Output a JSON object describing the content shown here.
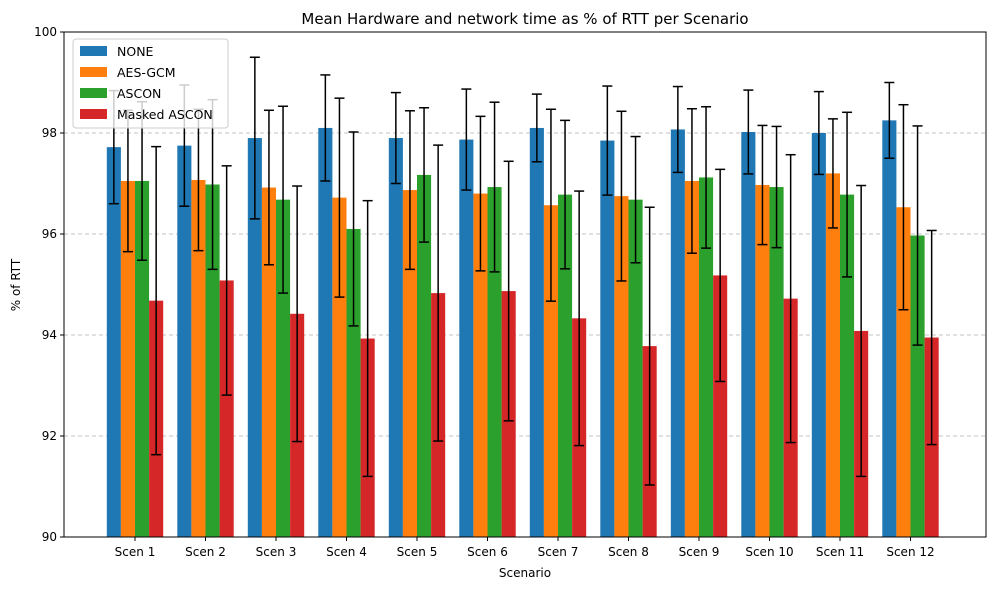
{
  "chart_data": {
    "type": "bar",
    "title": "Mean Hardware and network time as % of RTT per Scenario",
    "xlabel": "Scenario",
    "ylabel": "% of RTT",
    "ylim": [
      90,
      100
    ],
    "yticks": [
      90,
      92,
      94,
      96,
      98,
      100
    ],
    "grid": "horizontal dashed",
    "legend_position": "top-left",
    "categories": [
      "Scen 1",
      "Scen 2",
      "Scen 3",
      "Scen 4",
      "Scen 5",
      "Scen 6",
      "Scen 7",
      "Scen 8",
      "Scen 9",
      "Scen 10",
      "Scen 11",
      "Scen 12"
    ],
    "series": [
      {
        "name": "NONE",
        "color": "#1f77b4",
        "values": [
          97.72,
          97.75,
          97.9,
          98.1,
          97.9,
          97.87,
          98.1,
          97.85,
          98.07,
          98.02,
          98.0,
          98.25
        ],
        "error": [
          1.12,
          1.2,
          1.6,
          1.05,
          0.9,
          1.0,
          0.67,
          1.08,
          0.85,
          0.83,
          0.82,
          0.75
        ]
      },
      {
        "name": "AES-GCM",
        "color": "#ff7f0e",
        "values": [
          97.05,
          97.07,
          96.92,
          96.72,
          96.87,
          96.8,
          96.57,
          96.75,
          97.05,
          96.97,
          97.2,
          96.53
        ],
        "error": [
          1.4,
          1.4,
          1.53,
          1.97,
          1.57,
          1.53,
          1.9,
          1.68,
          1.43,
          1.18,
          1.08,
          2.03
        ]
      },
      {
        "name": "ASCON",
        "color": "#2ca02c",
        "values": [
          97.05,
          96.98,
          96.68,
          96.1,
          97.17,
          96.93,
          96.78,
          96.68,
          97.12,
          96.93,
          96.78,
          95.97
        ],
        "error": [
          1.57,
          1.68,
          1.85,
          1.92,
          1.33,
          1.68,
          1.47,
          1.25,
          1.4,
          1.2,
          1.63,
          2.17
        ]
      },
      {
        "name": "Masked ASCON",
        "color": "#d62728",
        "values": [
          94.68,
          95.08,
          94.42,
          93.93,
          94.83,
          94.87,
          94.33,
          93.78,
          95.18,
          94.72,
          94.08,
          93.95
        ],
        "error": [
          3.05,
          2.27,
          2.53,
          2.73,
          2.93,
          2.57,
          2.52,
          2.75,
          2.1,
          2.85,
          2.88,
          2.12
        ]
      }
    ]
  }
}
